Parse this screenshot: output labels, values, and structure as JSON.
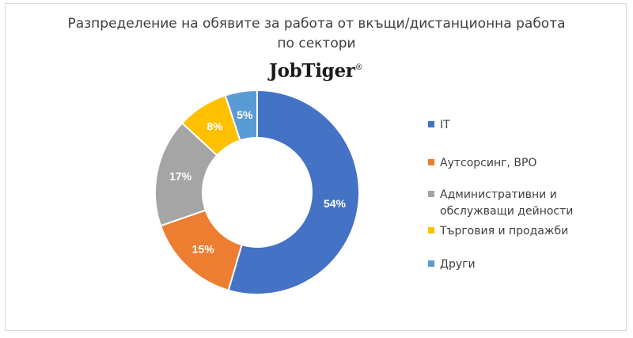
{
  "chart_data": {
    "type": "pie",
    "variant": "donut",
    "title": "Разпределение на обявите за работа от вкъщи/дистанционна работа по сектори",
    "title_lines": [
      "Разпределение на обявите за работа от вкъщи/дистанционна работа",
      "по сектори"
    ],
    "categories": [
      "IT",
      "Аутсорсинг, BPO",
      "Административни и обслужващи дейности",
      "Търговия и продажби",
      "Други"
    ],
    "values": [
      54,
      15,
      17,
      8,
      5
    ],
    "data_labels": [
      "54%",
      "15%",
      "17%",
      "8%",
      "5%"
    ],
    "colors": [
      "#4472c4",
      "#ed7d31",
      "#a5a5a5",
      "#ffc000",
      "#5b9bd5"
    ],
    "legend_position": "right"
  },
  "brand": {
    "name": "JobTiger",
    "mark": "®"
  }
}
